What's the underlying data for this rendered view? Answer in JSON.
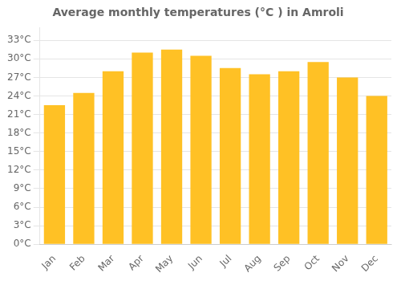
{
  "chart_data": {
    "type": "bar",
    "title": "Average monthly temperatures (°C ) in Amroli",
    "categories": [
      "Jan",
      "Feb",
      "Mar",
      "Apr",
      "May",
      "Jun",
      "Jul",
      "Aug",
      "Sep",
      "Oct",
      "Nov",
      "Dec"
    ],
    "values": [
      22.5,
      24.5,
      28.0,
      31.0,
      31.5,
      30.5,
      28.5,
      27.5,
      28.0,
      29.5,
      27.0,
      24.0
    ],
    "color": "#FFC125",
    "ylim": [
      0,
      35
    ],
    "yticks": [
      {
        "value": 0,
        "label": "0°C"
      },
      {
        "value": 3,
        "label": "3°C"
      },
      {
        "value": 6,
        "label": "6°C"
      },
      {
        "value": 9,
        "label": "9°C"
      },
      {
        "value": 12,
        "label": "12°C"
      },
      {
        "value": 15,
        "label": "15°C"
      },
      {
        "value": 18,
        "label": "18°C"
      },
      {
        "value": 21,
        "label": "21°C"
      },
      {
        "value": 24,
        "label": "24°C"
      },
      {
        "value": 27,
        "label": "27°C"
      },
      {
        "value": 30,
        "label": "30°C"
      },
      {
        "value": 33,
        "label": "33°C"
      }
    ],
    "grid": true
  }
}
